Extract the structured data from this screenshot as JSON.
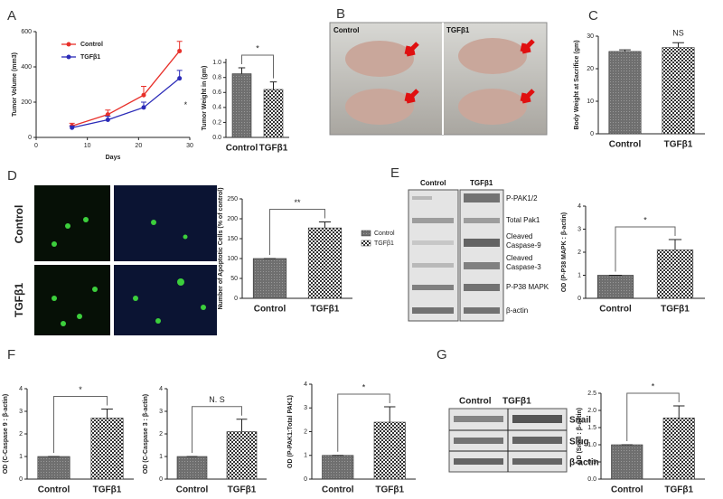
{
  "panel_labels": [
    "A",
    "B",
    "C",
    "D",
    "E",
    "F",
    "G"
  ],
  "photo_labels": [
    "Control",
    "TGFβ1"
  ],
  "image_row_labels": [
    "Control",
    "TGFβ1"
  ],
  "blot_e": {
    "columns": [
      "Control",
      "TGFβ1"
    ],
    "rows": [
      "P-PAK1/2",
      "Total Pak1",
      "Cleaved Caspase-9",
      "Cleaved Caspase-3",
      "P-P38 MAPK",
      "β-actin"
    ]
  },
  "blot_g": {
    "columns": [
      "Control",
      "TGFβ1"
    ],
    "rows": [
      "Snail",
      "Slug",
      "β-actin"
    ]
  },
  "chart_data": [
    {
      "type": "line",
      "xlabel": "Days",
      "ylabel": "Tumor Volume (mm3)",
      "x": [
        7,
        14,
        21,
        28
      ],
      "xlim": [
        0,
        30
      ],
      "xticks": [
        0,
        10,
        20,
        30
      ],
      "ylim": [
        0,
        600
      ],
      "yticks": [
        0,
        200,
        400,
        600
      ],
      "series": [
        {
          "name": "Control",
          "color": "#e8302a",
          "values": [
            65,
            130,
            240,
            490
          ],
          "errors": [
            15,
            25,
            50,
            55
          ]
        },
        {
          "name": "TGFβ1",
          "color": "#2b2bb8",
          "values": [
            55,
            100,
            170,
            335
          ],
          "errors": [
            10,
            20,
            30,
            45
          ]
        }
      ],
      "annotation": "*"
    },
    {
      "type": "bar",
      "ylabel": "Tumor Weight in (gm)",
      "categories": [
        "Control",
        "TGFβ1"
      ],
      "values": [
        0.85,
        0.64
      ],
      "errors": [
        0.08,
        0.1
      ],
      "ylim": [
        0,
        1.05
      ],
      "yticks": [
        {
          "value": 0,
          "label": "0.0"
        },
        {
          "value": 0.2,
          "label": "0.2"
        },
        {
          "value": 0.4,
          "label": "0.4"
        },
        {
          "value": 0.6,
          "label": "0.6"
        },
        {
          "value": 0.8,
          "label": "0.8"
        },
        {
          "value": 1,
          "label": "1.0"
        }
      ],
      "annotation": "*",
      "bracket": true
    },
    {
      "type": "bar",
      "ylabel": "Body Weight at Sacrifice (gm)",
      "categories": [
        "Control",
        "TGFβ1"
      ],
      "values": [
        25.3,
        26.5
      ],
      "errors": [
        0.5,
        1.5
      ],
      "ylim": [
        0,
        30
      ],
      "yticks": [
        0,
        10,
        20,
        30
      ],
      "annotation": "NS",
      "bracket": false
    },
    {
      "type": "bar",
      "ylabel": "Number of Apoptotic Cells (% of control)",
      "categories": [
        "Control",
        "TGFβ1"
      ],
      "values": [
        100,
        177
      ],
      "errors": [
        0,
        15
      ],
      "ylim": [
        0,
        250
      ],
      "yticks": [
        0,
        50,
        100,
        150,
        200,
        250
      ],
      "legend": [
        "Control",
        "TGFβ1"
      ],
      "annotation": "**",
      "bracket": true
    },
    {
      "type": "bar",
      "ylabel": "OD (P-P38 MAPK : β-actin)",
      "categories": [
        "Control",
        "TGFβ1"
      ],
      "values": [
        1,
        2.1
      ],
      "errors": [
        0,
        0.45
      ],
      "ylim": [
        0,
        4
      ],
      "yticks": [
        0,
        1,
        2,
        3,
        4
      ],
      "annotation": "*",
      "bracket": true
    },
    {
      "type": "bar",
      "ylabel": "OD (C-Caspase 9 : β-actin)",
      "categories": [
        "Control",
        "TGFβ1"
      ],
      "values": [
        1,
        2.7
      ],
      "errors": [
        0,
        0.4
      ],
      "ylim": [
        0,
        4
      ],
      "yticks": [
        0,
        1,
        2,
        3,
        4
      ],
      "annotation": "*",
      "bracket": true
    },
    {
      "type": "bar",
      "ylabel": "OD (C-Caspase 3 : β-actin)",
      "categories": [
        "Control",
        "TGFβ1"
      ],
      "values": [
        1,
        2.1
      ],
      "errors": [
        0,
        0.55
      ],
      "ylim": [
        0,
        4
      ],
      "yticks": [
        0,
        1,
        2,
        3,
        4
      ],
      "annotation": "N. S",
      "bracket": true
    },
    {
      "type": "bar",
      "ylabel": "OD (P-PAK1:Total PAK1)",
      "categories": [
        "Control",
        "TGFβ1"
      ],
      "values": [
        1,
        2.4
      ],
      "errors": [
        0,
        0.65
      ],
      "ylim": [
        0,
        4
      ],
      "yticks": [
        0,
        1,
        2,
        3,
        4
      ],
      "annotation": "*",
      "bracket": true
    },
    {
      "type": "bar",
      "ylabel": "OD (Snail : β-actin)",
      "categories": [
        "Control",
        "TGFβ1"
      ],
      "values": [
        1,
        1.78
      ],
      "errors": [
        0,
        0.35
      ],
      "ylim": [
        0,
        2.5
      ],
      "yticks": [
        {
          "value": 0,
          "label": "0.0"
        },
        {
          "value": 0.5,
          "label": "0.5"
        },
        {
          "value": 1,
          "label": "1.0"
        },
        {
          "value": 1.5,
          "label": "1.5"
        },
        {
          "value": 2,
          "label": "2.0"
        },
        {
          "value": 2.5,
          "label": "2.5"
        }
      ],
      "annotation": "*",
      "bracket": true
    }
  ]
}
